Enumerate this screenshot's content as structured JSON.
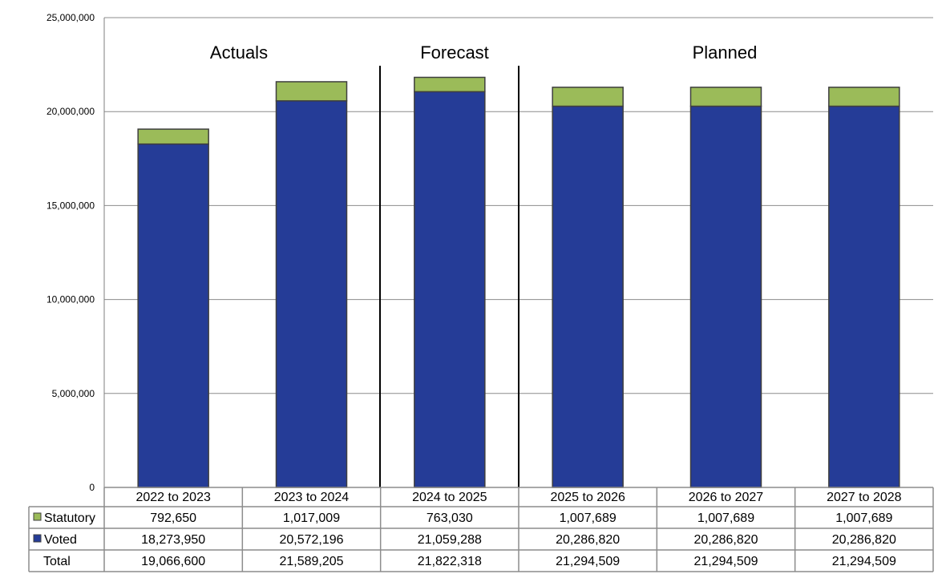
{
  "chart_data": {
    "type": "bar",
    "stacked": true,
    "categories": [
      "2022 to 2023",
      "2023 to 2024",
      "2024 to 2025",
      "2025 to 2026",
      "2026 to 2027",
      "2027 to 2028"
    ],
    "series": [
      {
        "name": "Voted",
        "color": "#253C97",
        "values": [
          18273950,
          20572196,
          21059288,
          20286820,
          20286820,
          20286820
        ]
      },
      {
        "name": "Statutory",
        "color": "#9BBB59",
        "values": [
          792650,
          1017009,
          763030,
          1007689,
          1007689,
          1007689
        ]
      }
    ],
    "ylim": [
      0,
      25000000
    ],
    "yticks": [
      0,
      5000000,
      10000000,
      15000000,
      20000000,
      25000000
    ],
    "ytick_labels": [
      "0",
      "5,000,000",
      "10,000,000",
      "15,000,000",
      "20,000,000",
      "25,000,000"
    ],
    "grid": true,
    "section_labels": [
      "Actuals",
      "Forecast",
      "Planned"
    ],
    "data_table": {
      "rows": [
        {
          "label": "Statutory",
          "color": "#9BBB59",
          "cells": [
            "792,650",
            "1,017,009",
            "763,030",
            "1,007,689",
            "1,007,689",
            "1,007,689"
          ]
        },
        {
          "label": "Voted",
          "color": "#253C97",
          "cells": [
            "18,273,950",
            "20,572,196",
            "21,059,288",
            "20,286,820",
            "20,286,820",
            "20,286,820"
          ]
        },
        {
          "label": "Total",
          "color": null,
          "cells": [
            "19,066,600",
            "21,589,205",
            "21,822,318",
            "21,294,509",
            "21,294,509",
            "21,294,509"
          ]
        }
      ]
    }
  }
}
